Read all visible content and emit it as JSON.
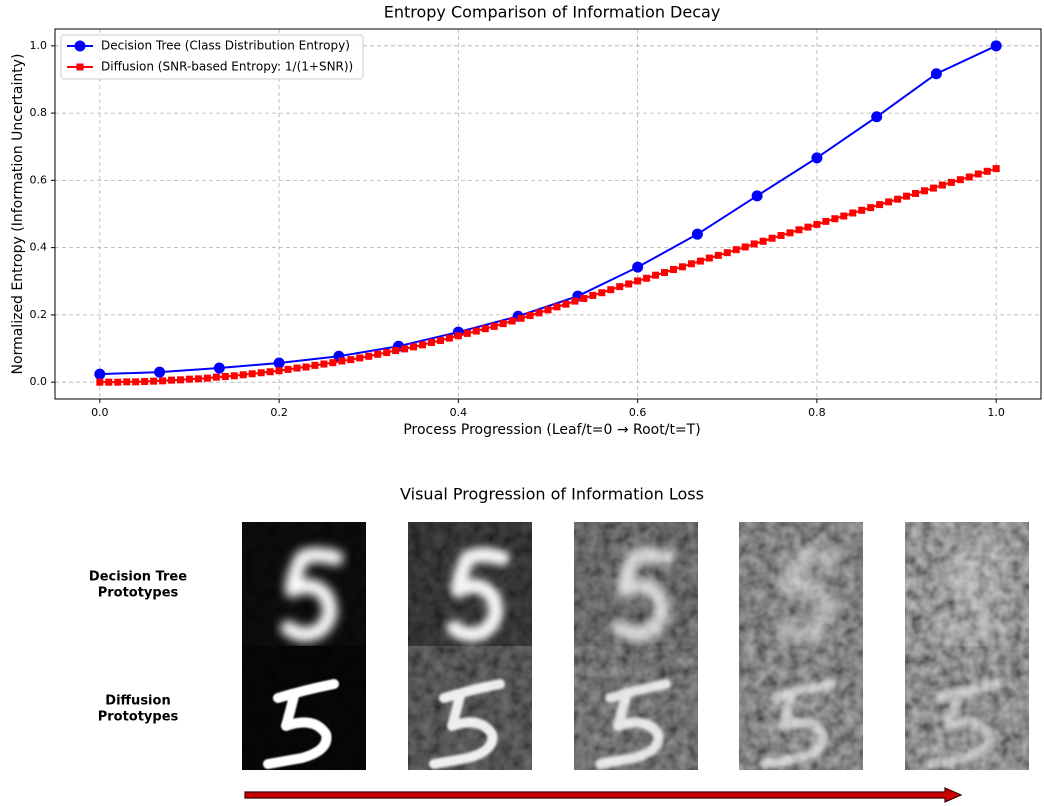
{
  "chart_data": {
    "type": "line",
    "title": "Entropy Comparison of Information Decay",
    "x_label": "Process Progression (Leaf/t=0 → Root/t=T)",
    "y_label": "Normalized Entropy (Information Uncertainty)",
    "xlim": [
      -0.05,
      1.05
    ],
    "ylim": [
      -0.05,
      1.05
    ],
    "xticks": [
      {
        "value": 0,
        "label": "0.0"
      },
      {
        "value": 0.2,
        "label": "0.2"
      },
      {
        "value": 0.4,
        "label": "0.4"
      },
      {
        "value": 0.6,
        "label": "0.6"
      },
      {
        "value": 0.8,
        "label": "0.8"
      },
      {
        "value": 1,
        "label": "1.0"
      }
    ],
    "yticks": [
      {
        "value": 0,
        "label": "0.0"
      },
      {
        "value": 0.2,
        "label": "0.2"
      },
      {
        "value": 0.4,
        "label": "0.4"
      },
      {
        "value": 0.6,
        "label": "0.6"
      },
      {
        "value": 0.8,
        "label": "0.8"
      },
      {
        "value": 1,
        "label": "1.0"
      }
    ],
    "grid": true,
    "legend": "upper left",
    "series": [
      {
        "name": "Decision Tree (Class Distribution Entropy)",
        "color": "#0000ff",
        "marker": "circle",
        "x": [
          0,
          0.0667,
          0.1333,
          0.2,
          0.2667,
          0.3333,
          0.4,
          0.4667,
          0.5333,
          0.6,
          0.6667,
          0.7333,
          0.8,
          0.8667,
          0.9333,
          1
        ],
        "values": [
          0.024,
          0.03,
          0.042,
          0.057,
          0.077,
          0.107,
          0.149,
          0.196,
          0.256,
          0.342,
          0.44,
          0.554,
          0.667,
          0.789,
          0.917,
          1.0
        ]
      },
      {
        "name": "Diffusion (SNR-based Entropy: 1/(1+SNR))",
        "color": "#ff0000",
        "marker": "square",
        "x": [
          0,
          0.01,
          0.02,
          0.03,
          0.04,
          0.05,
          0.06,
          0.07,
          0.08,
          0.09,
          0.1,
          0.11,
          0.12,
          0.13,
          0.14,
          0.15,
          0.16,
          0.17,
          0.18,
          0.19,
          0.2,
          0.21,
          0.22,
          0.23,
          0.24,
          0.25,
          0.26,
          0.27,
          0.28,
          0.29,
          0.3,
          0.31,
          0.32,
          0.33,
          0.34,
          0.35,
          0.36,
          0.37,
          0.38,
          0.39,
          0.4,
          0.41,
          0.42,
          0.43,
          0.44,
          0.45,
          0.46,
          0.47,
          0.48,
          0.49,
          0.5,
          0.51,
          0.52,
          0.53,
          0.54,
          0.55,
          0.56,
          0.57,
          0.58,
          0.59,
          0.6,
          0.61,
          0.62,
          0.63,
          0.64,
          0.65,
          0.66,
          0.67,
          0.68,
          0.69,
          0.7,
          0.71,
          0.72,
          0.73,
          0.74,
          0.75,
          0.76,
          0.77,
          0.78,
          0.79,
          0.8,
          0.81,
          0.82,
          0.83,
          0.84,
          0.85,
          0.86,
          0.87,
          0.88,
          0.89,
          0.9,
          0.91,
          0.92,
          0.93,
          0.94,
          0.95,
          0.96,
          0.97,
          0.98,
          0.99,
          1
        ],
        "values": [
          0,
          0,
          0,
          0.001,
          0.001,
          0.002,
          0.003,
          0.004,
          0.006,
          0.007,
          0.009,
          0.01,
          0.012,
          0.015,
          0.017,
          0.019,
          0.022,
          0.025,
          0.028,
          0.031,
          0.034,
          0.038,
          0.042,
          0.045,
          0.05,
          0.054,
          0.058,
          0.063,
          0.067,
          0.072,
          0.077,
          0.083,
          0.088,
          0.094,
          0.099,
          0.105,
          0.111,
          0.118,
          0.124,
          0.131,
          0.138,
          0.145,
          0.152,
          0.159,
          0.166,
          0.174,
          0.182,
          0.19,
          0.198,
          0.206,
          0.215,
          0.224,
          0.232,
          0.241,
          0.249,
          0.258,
          0.266,
          0.275,
          0.284,
          0.292,
          0.301,
          0.309,
          0.318,
          0.326,
          0.335,
          0.343,
          0.352,
          0.36,
          0.369,
          0.377,
          0.385,
          0.394,
          0.402,
          0.411,
          0.419,
          0.428,
          0.436,
          0.444,
          0.453,
          0.461,
          0.469,
          0.478,
          0.486,
          0.494,
          0.503,
          0.511,
          0.519,
          0.528,
          0.536,
          0.544,
          0.553,
          0.561,
          0.569,
          0.577,
          0.586,
          0.594,
          0.602,
          0.61,
          0.619,
          0.627,
          0.635
        ]
      }
    ]
  },
  "panel": {
    "title": "Visual Progression of Information Loss",
    "row_labels": [
      [
        "Decision Tree",
        "Prototypes"
      ],
      [
        "Diffusion",
        "Prototypes"
      ]
    ]
  }
}
